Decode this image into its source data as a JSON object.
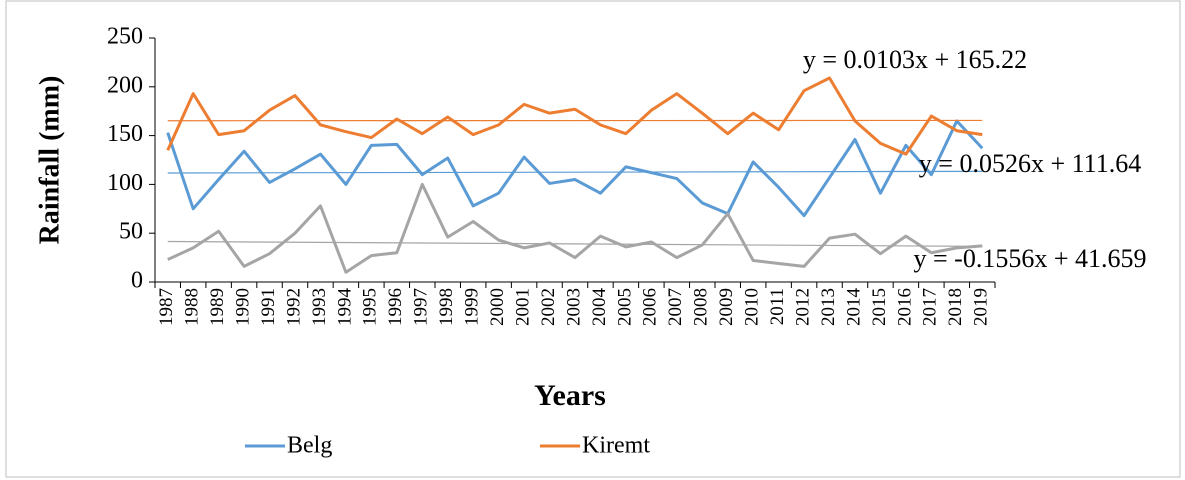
{
  "chart_data": {
    "type": "line",
    "y_label": "Rainfall (mm)",
    "x_label": "Years",
    "categories": [
      "1987",
      "1988",
      "1989",
      "1990",
      "1991",
      "1992",
      "1993",
      "1994",
      "1995",
      "1996",
      "1997",
      "1998",
      "1999",
      "2000",
      "2001",
      "2002",
      "2003",
      "2004",
      "2005",
      "2006",
      "2007",
      "2008",
      "2009",
      "2010",
      "2011",
      "2012",
      "2013",
      "2014",
      "2015",
      "2016",
      "2017",
      "2018",
      "2019"
    ],
    "series": [
      {
        "name": "Belg",
        "color": "#5b9bd5",
        "values": [
          153,
          75,
          105,
          134,
          102,
          116,
          131,
          100,
          140,
          141,
          110,
          127,
          78,
          91,
          128,
          101,
          105,
          91,
          118,
          112,
          106,
          81,
          70,
          123,
          97,
          68,
          107,
          146,
          91,
          140,
          110,
          165,
          137
        ],
        "trend": {
          "slope": 0.0526,
          "intercept": 111.64,
          "label": "y = 0.0526x + 111.64"
        }
      },
      {
        "name": "Kiremt",
        "color": "#ed7d31",
        "values": [
          135,
          193,
          151,
          155,
          176,
          191,
          161,
          154,
          148,
          167,
          152,
          169,
          151,
          161,
          182,
          173,
          177,
          161,
          152,
          176,
          193,
          173,
          152,
          173,
          156,
          196,
          209,
          165,
          142,
          131,
          170,
          155,
          151
        ],
        "trend": {
          "slope": 0.0103,
          "intercept": 165.22,
          "label": "y = 0.0103x + 165.22"
        }
      },
      {
        "color": "#a5a5a5",
        "values": [
          23,
          35,
          52,
          16,
          29,
          50,
          78,
          10,
          27,
          30,
          100,
          46,
          62,
          43,
          35,
          40,
          25,
          47,
          36,
          41,
          25,
          38,
          70,
          22,
          19,
          16,
          45,
          49,
          29,
          47,
          30,
          35,
          37
        ],
        "trend": {
          "slope": -0.1556,
          "intercept": 41.659,
          "label": "y = -0.1556x + 41.659"
        }
      }
    ],
    "ylim": [
      0,
      250
    ],
    "yticks": [
      0,
      50,
      100,
      150,
      200,
      250
    ],
    "grid": false,
    "legend": "bottom"
  }
}
